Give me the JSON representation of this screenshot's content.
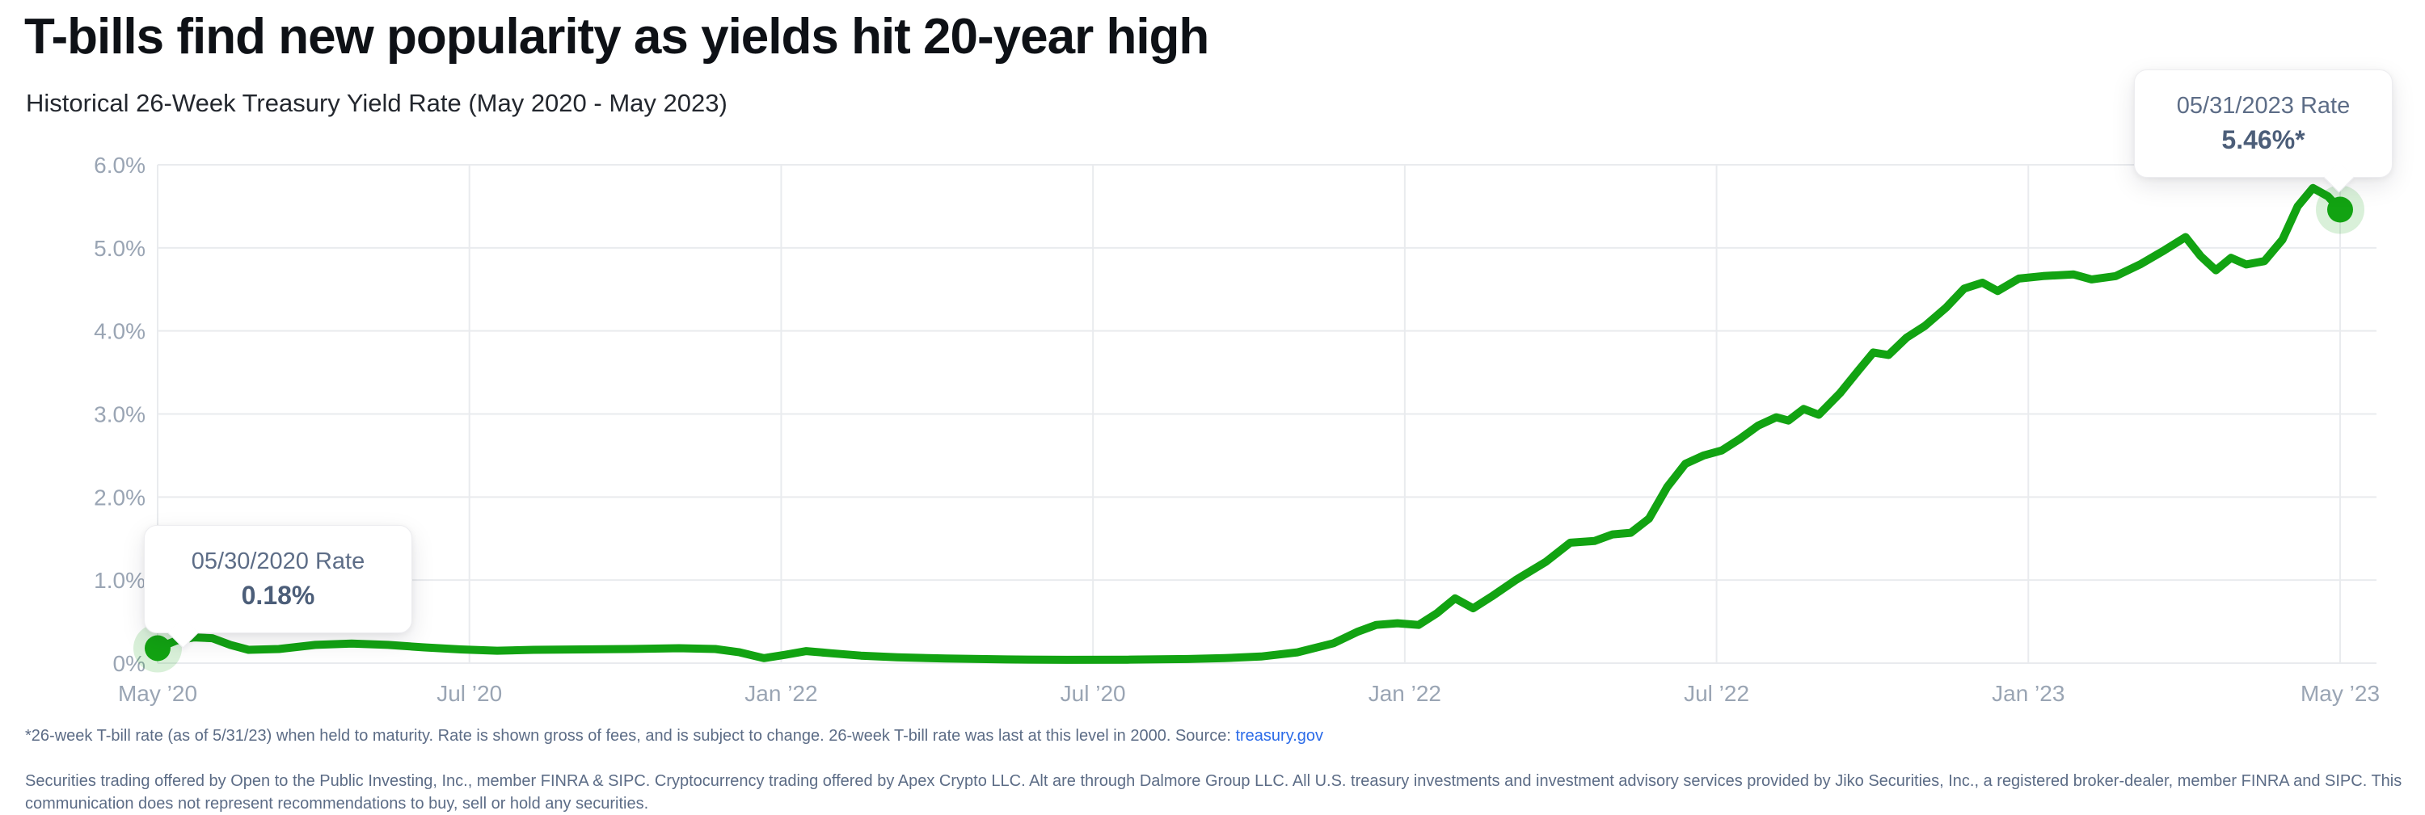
{
  "header": {
    "title": "T-bills find new popularity as yields hit 20-year high",
    "subtitle": "Historical 26-Week Treasury Yield Rate (May 2020 - May 2023)"
  },
  "chart_data": {
    "type": "line",
    "title": "Historical 26-Week Treasury Yield Rate (May 2020 - May 2023)",
    "series_name": "26-week Treasury yield rate",
    "line_color": "#12A312",
    "dot_halo_color": "rgba(18,163,18,0.16)",
    "grid": true,
    "grid_color": "#e9ebee",
    "axis_label_color": "#9aa5b4",
    "ylim": [
      0,
      6
    ],
    "x_unit": "months since May 2020",
    "x_range_months": 36,
    "y_tick_labels": [
      "6.0%",
      "5.0%",
      "4.0%",
      "3.0%",
      "2.0%",
      "1.0%",
      "0%"
    ],
    "x_tick_labels": [
      "May ’20",
      "Jul ’20",
      "Jan ’22",
      "Jul ’20",
      "Jan ’22",
      "Jul ’22",
      "Jan ’23",
      "May ’23"
    ],
    "points": [
      [
        0,
        0.18
      ],
      [
        0.3,
        0.27
      ],
      [
        0.6,
        0.31
      ],
      [
        0.9,
        0.3
      ],
      [
        1.2,
        0.22
      ],
      [
        1.5,
        0.16
      ],
      [
        2,
        0.17
      ],
      [
        2.6,
        0.22
      ],
      [
        3.2,
        0.235
      ],
      [
        3.8,
        0.22
      ],
      [
        4.4,
        0.19
      ],
      [
        5,
        0.165
      ],
      [
        5.6,
        0.15
      ],
      [
        6.2,
        0.16
      ],
      [
        7,
        0.165
      ],
      [
        7.8,
        0.17
      ],
      [
        8.6,
        0.18
      ],
      [
        9.2,
        0.17
      ],
      [
        9.6,
        0.13
      ],
      [
        10,
        0.06
      ],
      [
        10.35,
        0.1
      ],
      [
        10.7,
        0.145
      ],
      [
        11.1,
        0.12
      ],
      [
        11.6,
        0.09
      ],
      [
        12.2,
        0.07
      ],
      [
        13,
        0.055
      ],
      [
        14,
        0.045
      ],
      [
        15,
        0.04
      ],
      [
        16,
        0.042
      ],
      [
        17,
        0.05
      ],
      [
        17.6,
        0.06
      ],
      [
        18.2,
        0.08
      ],
      [
        18.8,
        0.13
      ],
      [
        19.4,
        0.24
      ],
      [
        19.8,
        0.38
      ],
      [
        20.1,
        0.46
      ],
      [
        20.45,
        0.48
      ],
      [
        20.8,
        0.46
      ],
      [
        21.1,
        0.6
      ],
      [
        21.4,
        0.78
      ],
      [
        21.7,
        0.66
      ],
      [
        22,
        0.8
      ],
      [
        22.4,
        1.0
      ],
      [
        22.9,
        1.22
      ],
      [
        23.3,
        1.45
      ],
      [
        23.7,
        1.47
      ],
      [
        24,
        1.55
      ],
      [
        24.3,
        1.57
      ],
      [
        24.6,
        1.74
      ],
      [
        24.9,
        2.12
      ],
      [
        25.2,
        2.4
      ],
      [
        25.5,
        2.5
      ],
      [
        25.8,
        2.56
      ],
      [
        26.1,
        2.7
      ],
      [
        26.4,
        2.86
      ],
      [
        26.7,
        2.96
      ],
      [
        26.9,
        2.92
      ],
      [
        27.15,
        3.06
      ],
      [
        27.4,
        2.99
      ],
      [
        27.75,
        3.25
      ],
      [
        28.05,
        3.52
      ],
      [
        28.3,
        3.74
      ],
      [
        28.55,
        3.71
      ],
      [
        28.85,
        3.92
      ],
      [
        29.15,
        4.06
      ],
      [
        29.5,
        4.28
      ],
      [
        29.8,
        4.51
      ],
      [
        30.1,
        4.58
      ],
      [
        30.35,
        4.48
      ],
      [
        30.7,
        4.63
      ],
      [
        31.1,
        4.66
      ],
      [
        31.6,
        4.68
      ],
      [
        31.9,
        4.62
      ],
      [
        32.3,
        4.66
      ],
      [
        32.7,
        4.8
      ],
      [
        33.1,
        4.97
      ],
      [
        33.45,
        5.13
      ],
      [
        33.7,
        4.9
      ],
      [
        33.95,
        4.73
      ],
      [
        34.2,
        4.88
      ],
      [
        34.45,
        4.8
      ],
      [
        34.75,
        4.84
      ],
      [
        35.05,
        5.1
      ],
      [
        35.3,
        5.5
      ],
      [
        35.55,
        5.72
      ],
      [
        35.8,
        5.62
      ],
      [
        36,
        5.46
      ]
    ],
    "annotations": [
      {
        "label": "05/30/2020 Rate",
        "value": "0.18%",
        "m": 0,
        "v": 0.18
      },
      {
        "label": "05/31/2023 Rate",
        "value": "5.46%*",
        "m": 36,
        "v": 5.46
      }
    ]
  },
  "footnote": {
    "text_before_link": "*26-week T-bill rate (as of 5/31/23) when held to maturity. Rate is shown gross of fees, and is subject to change. 26-week T-bill rate was last at this level in 2000. Source: ",
    "link_text": "treasury.gov"
  },
  "disclaimer": "Securities trading offered by Open to the Public Investing, Inc., member FINRA & SIPC. Cryptocurrency trading offered by Apex Crypto LLC. Alt are through Dalmore Group LLC. All U.S. treasury investments and investment advisory services provided by Jiko Securities, Inc., a registered broker-dealer, member FINRA and SIPC. This communication does not represent recommendations to buy, sell or hold any securities."
}
